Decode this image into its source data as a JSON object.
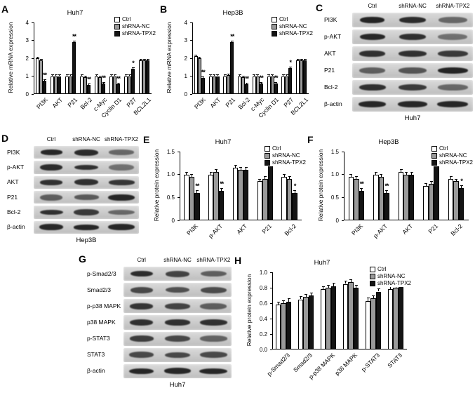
{
  "figure": {
    "series_names": [
      "Ctrl",
      "shRNA-NC",
      "shRNA-TPX2"
    ],
    "series_colors": [
      "#ffffff",
      "#9a9a9a",
      "#141414"
    ]
  },
  "panels": {
    "A": {
      "letter": "A"
    },
    "B": {
      "letter": "B"
    },
    "C": {
      "letter": "C"
    },
    "D": {
      "letter": "D"
    },
    "E": {
      "letter": "E"
    },
    "F": {
      "letter": "F"
    },
    "G": {
      "letter": "G"
    },
    "H": {
      "letter": "H"
    }
  },
  "chart_data": [
    {
      "panel": "A",
      "type": "bar",
      "title": "Huh7",
      "ylabel": "Relative mRNA expression",
      "ylim": [
        0,
        4
      ],
      "yticks": [
        "0",
        "1",
        "2",
        "3",
        "4"
      ],
      "error": 0.08,
      "legend_position": "top-right",
      "categories": [
        "PI3K",
        "AKT",
        "P21",
        "Bcl-2",
        "c-Myc",
        "Cyclin D1",
        "P27",
        "BCL2L1"
      ],
      "series": [
        {
          "name": "Ctrl",
          "values": [
            2.0,
            1.0,
            1.0,
            1.0,
            1.0,
            1.0,
            1.0,
            1.9
          ]
        },
        {
          "name": "shRNA-NC",
          "values": [
            1.9,
            1.0,
            1.0,
            0.95,
            0.95,
            1.0,
            1.0,
            1.9
          ]
        },
        {
          "name": "shRNA-TPX2",
          "values": [
            0.75,
            1.0,
            2.9,
            0.5,
            0.6,
            0.55,
            1.4,
            1.9
          ]
        }
      ],
      "sig": [
        "**",
        null,
        "**",
        "**",
        "**",
        "**",
        "*",
        null
      ]
    },
    {
      "panel": "B",
      "type": "bar",
      "title": "Hep3B",
      "ylabel": "Relative mRNA expression",
      "ylim": [
        0,
        4
      ],
      "yticks": [
        "0",
        "1",
        "2",
        "3",
        "4"
      ],
      "error": 0.08,
      "legend_position": "top-right",
      "categories": [
        "PI3K",
        "AKT",
        "P21",
        "Bcl-2",
        "c-Myc",
        "Cyclin D1",
        "P27",
        "BCL2L1"
      ],
      "series": [
        {
          "name": "Ctrl",
          "values": [
            2.1,
            1.0,
            1.0,
            1.0,
            1.0,
            1.0,
            1.0,
            1.9
          ]
        },
        {
          "name": "shRNA-NC",
          "values": [
            2.0,
            1.0,
            1.05,
            0.95,
            1.0,
            1.0,
            1.0,
            1.9
          ]
        },
        {
          "name": "shRNA-TPX2",
          "values": [
            0.9,
            1.0,
            2.9,
            0.55,
            0.6,
            0.6,
            1.45,
            1.9
          ]
        }
      ],
      "sig": [
        "**",
        null,
        "**",
        "**",
        "**",
        "**",
        "*",
        null
      ]
    },
    {
      "panel": "E",
      "type": "bar",
      "title": "Huh7",
      "ylabel": "Relative protein expression",
      "ylim": [
        0,
        1.5
      ],
      "yticks": [
        "0",
        "0.5",
        "1.0",
        "1.5"
      ],
      "error": 0.06,
      "legend_position": "top-right",
      "categories": [
        "PI3K",
        "p-AKT",
        "AKT",
        "P21",
        "Bcl-2"
      ],
      "series": [
        {
          "name": "Ctrl",
          "values": [
            1.0,
            1.0,
            1.15,
            0.85,
            0.95
          ]
        },
        {
          "name": "shRNA-NC",
          "values": [
            0.95,
            1.05,
            1.1,
            0.9,
            0.9
          ]
        },
        {
          "name": "shRNA-TPX2",
          "values": [
            0.6,
            0.65,
            1.1,
            1.35,
            0.6
          ]
        }
      ],
      "sig": [
        "**",
        "**",
        null,
        "**",
        "*"
      ]
    },
    {
      "panel": "F",
      "type": "bar",
      "title": "Hep3B",
      "ylabel": "Relative protein expression",
      "ylim": [
        0,
        1.5
      ],
      "yticks": [
        "0",
        "0.5",
        "1.0",
        "1.5"
      ],
      "error": 0.06,
      "legend_position": "top-right",
      "categories": [
        "PI3K",
        "p-AKT",
        "AKT",
        "P21",
        "Bcl-2"
      ],
      "series": [
        {
          "name": "Ctrl",
          "values": [
            0.95,
            1.0,
            1.05,
            0.75,
            0.9
          ]
        },
        {
          "name": "shRNA-NC",
          "values": [
            0.9,
            0.95,
            1.0,
            0.8,
            0.85
          ]
        },
        {
          "name": "shRNA-TPX2",
          "values": [
            0.65,
            0.6,
            1.0,
            1.2,
            0.7
          ]
        }
      ],
      "sig": [
        "**",
        "**",
        null,
        "**",
        "*"
      ]
    },
    {
      "panel": "H",
      "type": "bar",
      "title": "Huh7",
      "ylabel": "Relative protein expression",
      "ylim": [
        0,
        1.0
      ],
      "yticks": [
        "0.0",
        "0.2",
        "0.4",
        "0.6",
        "0.8",
        "1.0"
      ],
      "error": 0.04,
      "legend_position": "top-right",
      "categories": [
        "p-Smad2/3",
        "Smad2/3",
        "p-p38 MAPK",
        "p38 MAPK",
        "p-STAT3",
        "STAT3"
      ],
      "series": [
        {
          "name": "Ctrl",
          "values": [
            0.58,
            0.65,
            0.78,
            0.85,
            0.63,
            0.78
          ]
        },
        {
          "name": "shRNA-NC",
          "values": [
            0.6,
            0.68,
            0.8,
            0.87,
            0.66,
            0.8
          ]
        },
        {
          "name": "shRNA-TPX2",
          "values": [
            0.62,
            0.7,
            0.82,
            0.8,
            0.75,
            0.82
          ]
        }
      ],
      "sig": [
        null,
        null,
        null,
        null,
        null,
        null
      ]
    }
  ],
  "blots": [
    {
      "panel": "C",
      "cell_line": "Huh7",
      "lanes": [
        "Ctrl",
        "shRNA-NC",
        "shRNA-TPX2"
      ],
      "rows": [
        {
          "label": "PI3K",
          "intensities": [
            0.92,
            0.88,
            0.55
          ]
        },
        {
          "label": "p-AKT",
          "intensities": [
            0.9,
            0.85,
            0.5
          ]
        },
        {
          "label": "AKT",
          "intensities": [
            0.85,
            0.85,
            0.8
          ]
        },
        {
          "label": "P21",
          "intensities": [
            0.6,
            0.65,
            0.92
          ]
        },
        {
          "label": "Bcl-2",
          "intensities": [
            0.85,
            0.8,
            0.55
          ]
        },
        {
          "label": "β-actin",
          "intensities": [
            0.9,
            0.9,
            0.9
          ]
        }
      ]
    },
    {
      "panel": "D",
      "cell_line": "Hep3B",
      "lanes": [
        "Ctrl",
        "shRNA-NC",
        "shRNA-TPX2"
      ],
      "rows": [
        {
          "label": "PI3K",
          "intensities": [
            0.9,
            0.88,
            0.55
          ]
        },
        {
          "label": "p-AKT",
          "intensities": [
            0.88,
            0.85,
            0.5
          ]
        },
        {
          "label": "AKT",
          "intensities": [
            0.85,
            0.85,
            0.82
          ]
        },
        {
          "label": "P21",
          "intensities": [
            0.6,
            0.62,
            0.9
          ]
        },
        {
          "label": "Bcl-2",
          "intensities": [
            0.85,
            0.8,
            0.55
          ]
        },
        {
          "label": "β-actin",
          "intensities": [
            0.9,
            0.9,
            0.9
          ]
        }
      ]
    },
    {
      "panel": "G",
      "cell_line": "Huh7",
      "lanes": [
        "Ctrl",
        "shRNA-NC",
        "shRNA-TPX2"
      ],
      "rows": [
        {
          "label": "p-Smad2/3",
          "intensities": [
            0.88,
            0.75,
            0.6
          ]
        },
        {
          "label": "Smad2/3",
          "intensities": [
            0.72,
            0.68,
            0.7
          ]
        },
        {
          "label": "p-p38 MAPK",
          "intensities": [
            0.82,
            0.75,
            0.6
          ]
        },
        {
          "label": "p38 MAPK",
          "intensities": [
            0.85,
            0.85,
            0.85
          ]
        },
        {
          "label": "p-STAT3",
          "intensities": [
            0.78,
            0.72,
            0.58
          ]
        },
        {
          "label": "STAT3",
          "intensities": [
            0.72,
            0.72,
            0.72
          ]
        },
        {
          "label": "β-actin",
          "intensities": [
            0.9,
            0.9,
            0.9
          ]
        }
      ]
    }
  ]
}
